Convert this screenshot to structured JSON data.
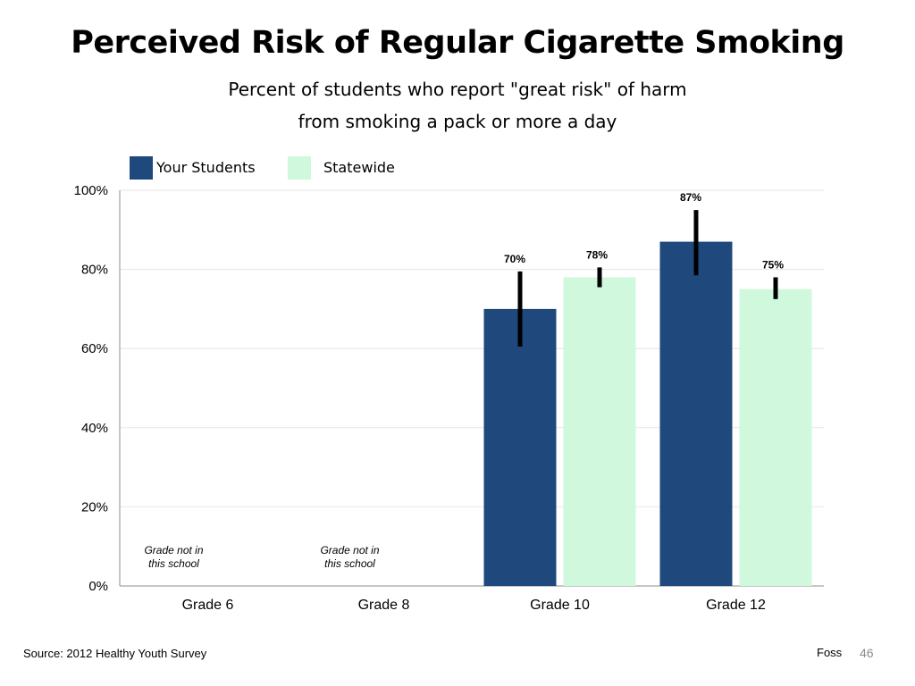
{
  "slide": {
    "title": "Perceived Risk of Regular Cigarette Smoking",
    "subtitle_line1": "Percent of students who report \"great risk\" of harm",
    "subtitle_line2": "from smoking a pack or more a day",
    "source": "Source: 2012 Healthy Youth Survey",
    "author": "Foss",
    "page_number": "46"
  },
  "chart_data": {
    "type": "bar",
    "title": "Perceived Risk of Regular Cigarette Smoking",
    "categories": [
      "Grade 6",
      "Grade 8",
      "Grade 10",
      "Grade 12"
    ],
    "series": [
      {
        "name": "Your Students",
        "color": "#1f497d",
        "values": [
          null,
          null,
          70,
          87
        ],
        "labels": [
          "",
          "",
          "70%",
          "87%"
        ],
        "error": [
          null,
          null,
          [
            60.5,
            79.5
          ],
          [
            78.5,
            95
          ]
        ]
      },
      {
        "name": "Statewide",
        "color": "#cff8dc",
        "values": [
          null,
          null,
          78,
          75
        ],
        "labels": [
          "",
          "",
          "78%",
          "75%"
        ],
        "error": [
          null,
          null,
          [
            75.5,
            80.5
          ],
          [
            72.5,
            78
          ]
        ]
      }
    ],
    "notes": [
      "Grade not in this school",
      "Grade not in this school",
      "",
      ""
    ],
    "ylim": [
      0,
      100
    ],
    "y_ticks": [
      0,
      20,
      40,
      60,
      80,
      100
    ],
    "y_tick_labels": [
      "0%",
      "20%",
      "40%",
      "60%",
      "80%",
      "100%"
    ],
    "grid": true,
    "legend_position": "top-left"
  }
}
